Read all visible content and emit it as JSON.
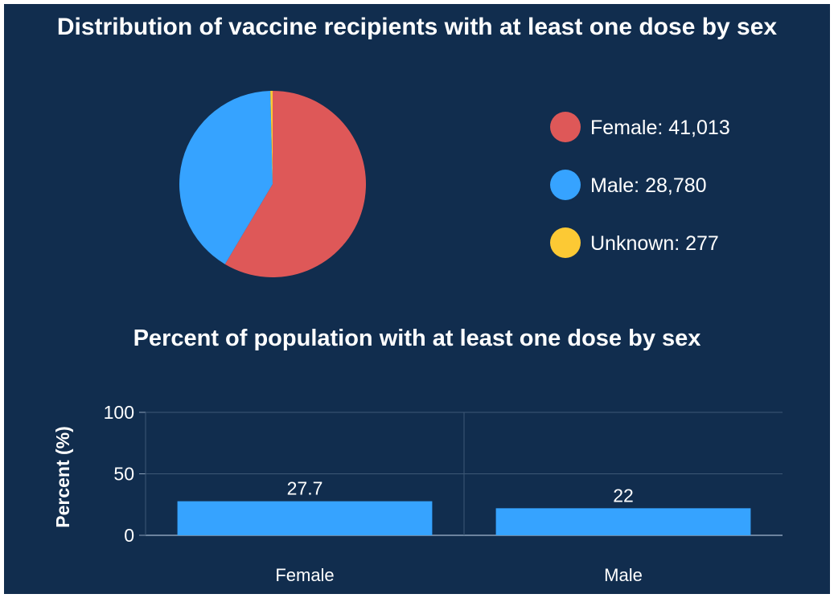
{
  "chart_data": [
    {
      "type": "pie",
      "title": "Distribution of vaccine recipients with at least one dose by sex",
      "slices": [
        {
          "label": "Female",
          "value": 41013,
          "display": "41,013",
          "color": "#de5858"
        },
        {
          "label": "Male",
          "value": 28780,
          "display": "28,780",
          "color": "#36a3ff"
        },
        {
          "label": "Unknown",
          "value": 277,
          "display": "277",
          "color": "#fcc934"
        }
      ],
      "legend_position": "right"
    },
    {
      "type": "bar",
      "title": "Percent of population with at least one dose by sex",
      "categories": [
        "Female",
        "Male"
      ],
      "values": [
        27.7,
        22
      ],
      "value_labels": [
        "27.7",
        "22"
      ],
      "xlabel": "",
      "ylabel": "Percent (%)",
      "ylim": [
        0,
        100
      ],
      "yticks": [
        0,
        50,
        100
      ],
      "grid": true,
      "bar_color": "#36a3ff"
    }
  ]
}
